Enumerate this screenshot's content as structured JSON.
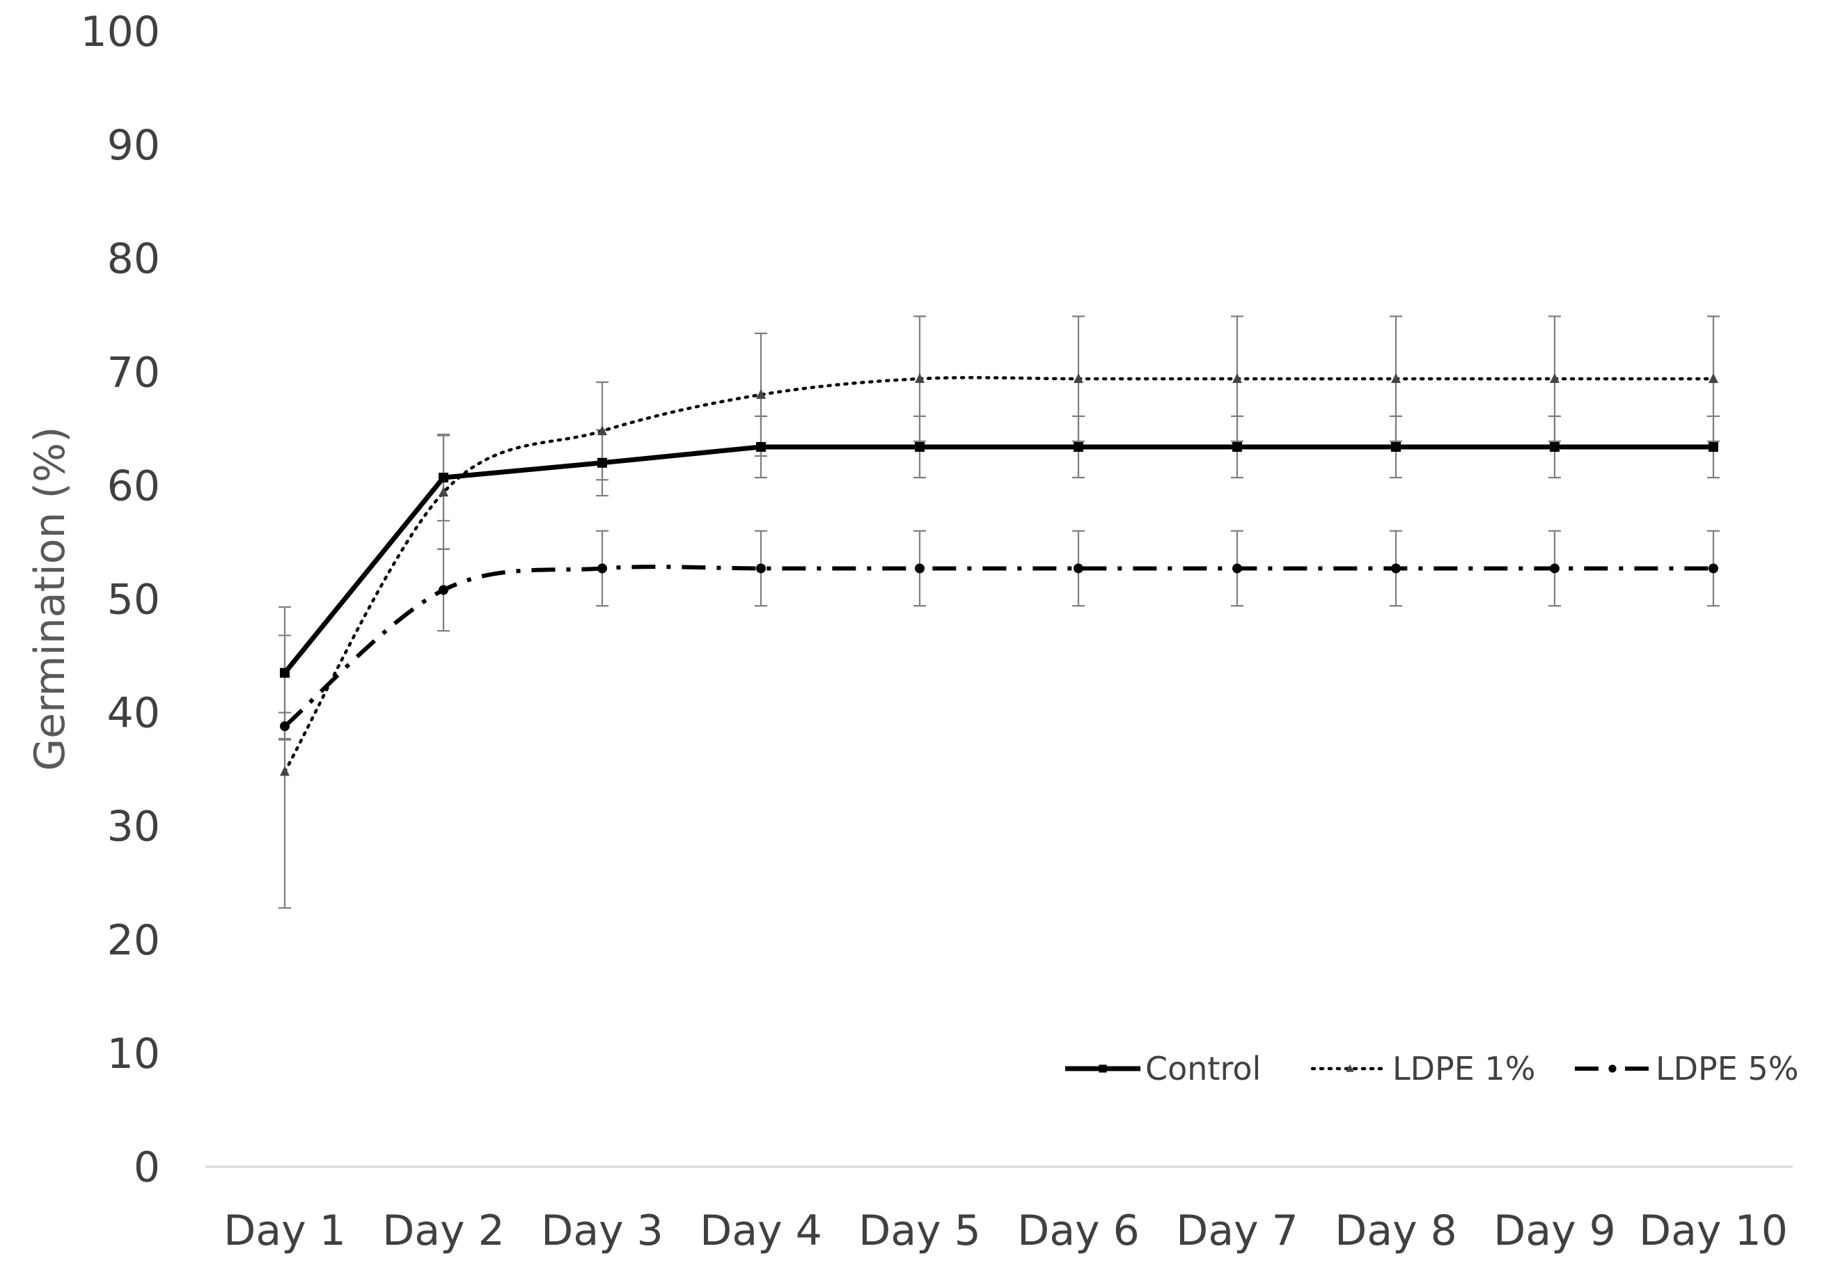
{
  "chart_data": {
    "type": "line",
    "title": "",
    "xlabel": "",
    "ylabel": "Germination  (%)",
    "ylim": [
      0,
      100
    ],
    "yticks": [
      0,
      10,
      20,
      30,
      40,
      50,
      60,
      70,
      80,
      90,
      100
    ],
    "categories": [
      "Day 1",
      "Day 2",
      "Day 3",
      "Day 4",
      "Day 5",
      "Day 6",
      "Day 7",
      "Day 8",
      "Day 9",
      "Day 10"
    ],
    "grid": false,
    "legend_position": "bottom-right",
    "series": [
      {
        "name": "Control",
        "line_style": "solid",
        "marker": "square",
        "smooth": false,
        "color": "#000000",
        "values": [
          43.5,
          60.7,
          62.0,
          63.4,
          63.4,
          63.4,
          63.4,
          63.4,
          63.4,
          63.4
        ],
        "errors": [
          5.8,
          3.8,
          2.9,
          2.7,
          2.7,
          2.7,
          2.7,
          2.7,
          2.7,
          2.7
        ]
      },
      {
        "name": "LDPE 1%",
        "line_style": "dotted",
        "marker": "triangle",
        "smooth": true,
        "color": "#000000",
        "values": [
          34.8,
          59.4,
          64.8,
          68.0,
          69.4,
          69.4,
          69.4,
          69.4,
          69.4,
          69.4
        ],
        "errors": [
          12.0,
          5.0,
          4.3,
          5.4,
          5.5,
          5.5,
          5.5,
          5.5,
          5.5,
          5.5
        ]
      },
      {
        "name": "LDPE 5%",
        "line_style": "dashdot",
        "marker": "circle",
        "smooth": true,
        "color": "#000000",
        "values": [
          38.8,
          50.8,
          52.7,
          52.7,
          52.7,
          52.7,
          52.7,
          52.7,
          52.7,
          52.7
        ],
        "errors": [
          1.2,
          3.6,
          3.3,
          3.3,
          3.3,
          3.3,
          3.3,
          3.3,
          3.3,
          3.3
        ]
      }
    ]
  }
}
